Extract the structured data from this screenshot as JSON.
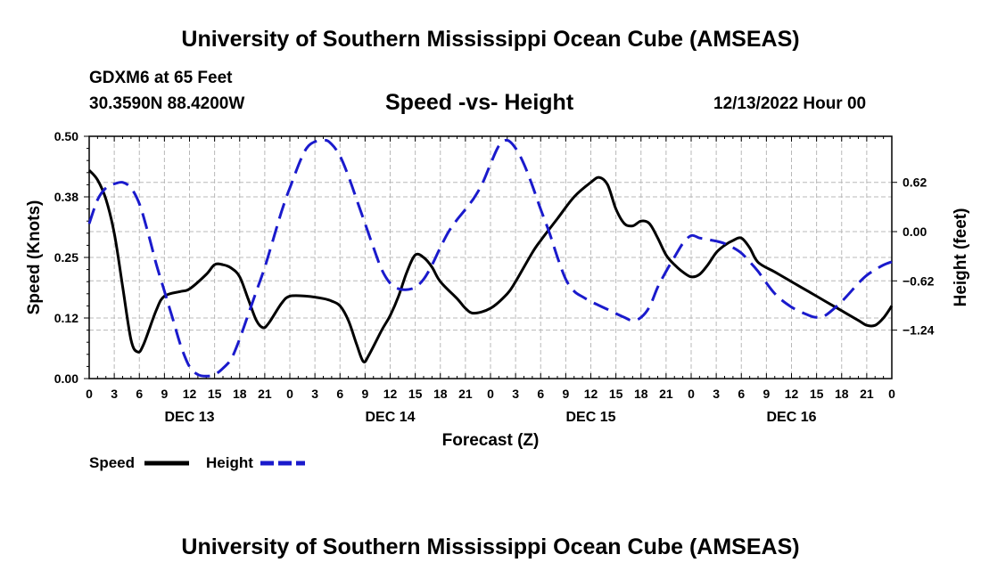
{
  "header": {
    "title_top": "University of Southern Mississippi Ocean Cube (AMSEAS)",
    "title_bottom": "University of Southern Mississippi Ocean Cube (AMSEAS)",
    "station": "GDXM6 at 65 Feet",
    "coords": "30.3590N  88.4200W",
    "datetime": "12/13/2022 Hour 00"
  },
  "colors": {
    "speed": "#000000",
    "height": "#1a1acc",
    "grid": "#b8b8b8"
  },
  "chart_data": {
    "type": "line",
    "title": "Speed -vs- Height",
    "xlabel": "Forecast (Z)",
    "ylabel_left": "Speed (Knots)",
    "ylabel_right": "Height (feet)",
    "x_range_hours": [
      0,
      96
    ],
    "x_tick_step_hours": 3,
    "x_tick_labels": [
      "0",
      "3",
      "6",
      "9",
      "12",
      "15",
      "18",
      "21",
      "0",
      "3",
      "6",
      "9",
      "12",
      "15",
      "18",
      "21",
      "0",
      "3",
      "6",
      "9",
      "12",
      "15",
      "18",
      "21",
      "0",
      "3",
      "6",
      "9",
      "12",
      "15",
      "18",
      "21",
      "0"
    ],
    "day_labels": [
      {
        "label": "DEC 13",
        "hour": 12
      },
      {
        "label": "DEC 14",
        "hour": 36
      },
      {
        "label": "DEC 15",
        "hour": 60
      },
      {
        "label": "DEC 16",
        "hour": 84
      }
    ],
    "ylim_left": [
      0,
      0.5
    ],
    "yticks_left": [
      0.0,
      0.125,
      0.25,
      0.375,
      0.5
    ],
    "ytick_labels_left": [
      "0.00",
      "0.12",
      "0.25",
      "0.38",
      "0.50"
    ],
    "ylim_right": [
      -1.85,
      1.2
    ],
    "yticks_right": [
      -1.24,
      -0.62,
      0.0,
      0.62
    ],
    "ytick_labels_right": [
      "−1.24",
      "−0.62",
      "0.00",
      "0.62"
    ],
    "grid": true,
    "legend": {
      "position": "bottom-left",
      "entries": [
        "Speed",
        "Height"
      ]
    },
    "series": [
      {
        "name": "Speed",
        "axis": "left",
        "style": "solid",
        "points": [
          [
            0,
            0.43
          ],
          [
            1,
            0.41
          ],
          [
            2,
            0.37
          ],
          [
            3,
            0.3
          ],
          [
            4,
            0.19
          ],
          [
            5,
            0.08
          ],
          [
            5.8,
            0.055
          ],
          [
            6.5,
            0.07
          ],
          [
            8,
            0.14
          ],
          [
            9,
            0.17
          ],
          [
            11,
            0.18
          ],
          [
            12,
            0.185
          ],
          [
            14,
            0.215
          ],
          [
            15,
            0.235
          ],
          [
            16,
            0.235
          ],
          [
            17,
            0.228
          ],
          [
            18,
            0.21
          ],
          [
            19,
            0.165
          ],
          [
            20,
            0.12
          ],
          [
            20.8,
            0.105
          ],
          [
            21.5,
            0.115
          ],
          [
            23,
            0.155
          ],
          [
            24,
            0.17
          ],
          [
            26,
            0.17
          ],
          [
            28,
            0.165
          ],
          [
            29,
            0.16
          ],
          [
            30,
            0.15
          ],
          [
            31,
            0.12
          ],
          [
            32,
            0.07
          ],
          [
            32.8,
            0.035
          ],
          [
            33.5,
            0.05
          ],
          [
            35,
            0.1
          ],
          [
            36,
            0.13
          ],
          [
            37,
            0.17
          ],
          [
            38,
            0.22
          ],
          [
            39,
            0.255
          ],
          [
            40,
            0.25
          ],
          [
            41,
            0.23
          ],
          [
            42,
            0.2
          ],
          [
            44,
            0.165
          ],
          [
            45,
            0.145
          ],
          [
            46,
            0.135
          ],
          [
            48,
            0.145
          ],
          [
            50,
            0.175
          ],
          [
            51,
            0.2
          ],
          [
            53,
            0.26
          ],
          [
            54,
            0.285
          ],
          [
            56,
            0.33
          ],
          [
            58,
            0.375
          ],
          [
            60,
            0.405
          ],
          [
            61,
            0.415
          ],
          [
            62,
            0.4
          ],
          [
            63,
            0.35
          ],
          [
            64,
            0.32
          ],
          [
            65,
            0.315
          ],
          [
            66,
            0.325
          ],
          [
            67,
            0.32
          ],
          [
            68,
            0.29
          ],
          [
            69,
            0.255
          ],
          [
            70,
            0.235
          ],
          [
            71,
            0.22
          ],
          [
            72,
            0.21
          ],
          [
            73,
            0.215
          ],
          [
            74,
            0.235
          ],
          [
            75,
            0.26
          ],
          [
            76,
            0.275
          ],
          [
            77,
            0.285
          ],
          [
            78,
            0.29
          ],
          [
            79,
            0.27
          ],
          [
            80,
            0.24
          ],
          [
            82,
            0.22
          ],
          [
            84,
            0.2
          ],
          [
            86,
            0.18
          ],
          [
            88,
            0.16
          ],
          [
            90,
            0.14
          ],
          [
            92,
            0.12
          ],
          [
            93,
            0.11
          ],
          [
            94,
            0.11
          ],
          [
            95,
            0.125
          ],
          [
            96,
            0.15
          ]
        ]
      },
      {
        "name": "Height",
        "axis": "right",
        "style": "dashed",
        "points": [
          [
            0,
            0.1
          ],
          [
            1,
            0.4
          ],
          [
            2,
            0.55
          ],
          [
            3,
            0.6
          ],
          [
            4,
            0.62
          ],
          [
            5,
            0.55
          ],
          [
            6,
            0.35
          ],
          [
            7,
            0.0
          ],
          [
            8,
            -0.4
          ],
          [
            9,
            -0.75
          ],
          [
            10,
            -1.1
          ],
          [
            11,
            -1.45
          ],
          [
            12,
            -1.7
          ],
          [
            13,
            -1.8
          ],
          [
            14,
            -1.82
          ],
          [
            15,
            -1.8
          ],
          [
            16,
            -1.72
          ],
          [
            17,
            -1.6
          ],
          [
            18,
            -1.35
          ],
          [
            19,
            -1.05
          ],
          [
            20,
            -0.75
          ],
          [
            21,
            -0.45
          ],
          [
            22,
            -0.1
          ],
          [
            23,
            0.25
          ],
          [
            24,
            0.55
          ],
          [
            26,
            1.05
          ],
          [
            28,
            1.15
          ],
          [
            29,
            1.1
          ],
          [
            30,
            0.95
          ],
          [
            31,
            0.7
          ],
          [
            32,
            0.4
          ],
          [
            33,
            0.1
          ],
          [
            34,
            -0.2
          ],
          [
            35,
            -0.48
          ],
          [
            36,
            -0.65
          ],
          [
            37,
            -0.72
          ],
          [
            38,
            -0.73
          ],
          [
            39,
            -0.7
          ],
          [
            40,
            -0.6
          ],
          [
            41,
            -0.42
          ],
          [
            42,
            -0.2
          ],
          [
            43,
            0.0
          ],
          [
            44,
            0.15
          ],
          [
            45,
            0.28
          ],
          [
            46,
            0.42
          ],
          [
            47,
            0.6
          ],
          [
            48,
            0.85
          ],
          [
            49,
            1.08
          ],
          [
            50,
            1.15
          ],
          [
            51,
            1.05
          ],
          [
            52,
            0.85
          ],
          [
            53,
            0.58
          ],
          [
            54,
            0.28
          ],
          [
            55,
            0.0
          ],
          [
            56,
            -0.32
          ],
          [
            57,
            -0.6
          ],
          [
            58,
            -0.75
          ],
          [
            59,
            -0.82
          ],
          [
            60,
            -0.88
          ],
          [
            62,
            -0.98
          ],
          [
            64,
            -1.08
          ],
          [
            65,
            -1.12
          ],
          [
            66,
            -1.08
          ],
          [
            67,
            -0.95
          ],
          [
            68,
            -0.7
          ],
          [
            69,
            -0.5
          ],
          [
            70,
            -0.32
          ],
          [
            71,
            -0.15
          ],
          [
            72,
            -0.05
          ],
          [
            73,
            -0.08
          ],
          [
            74,
            -0.1
          ],
          [
            75,
            -0.12
          ],
          [
            76,
            -0.15
          ],
          [
            77,
            -0.2
          ],
          [
            78,
            -0.27
          ],
          [
            79,
            -0.38
          ],
          [
            80,
            -0.5
          ],
          [
            82,
            -0.78
          ],
          [
            84,
            -0.95
          ],
          [
            86,
            -1.05
          ],
          [
            87,
            -1.08
          ],
          [
            88,
            -1.06
          ],
          [
            90,
            -0.88
          ],
          [
            92,
            -0.65
          ],
          [
            93,
            -0.55
          ],
          [
            94,
            -0.48
          ],
          [
            95,
            -0.42
          ],
          [
            96,
            -0.38
          ]
        ]
      }
    ]
  }
}
